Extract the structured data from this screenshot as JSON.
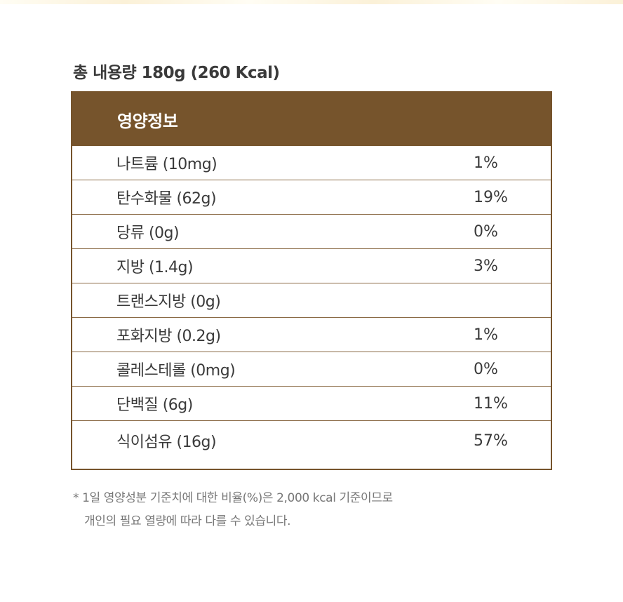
{
  "total": "총 내용량 180g (260 Kcal)",
  "panel": {
    "title": "영양정보",
    "rows": [
      {
        "name": "나트륨 (10mg)",
        "percent": "1%"
      },
      {
        "name": "탄수화물 (62g)",
        "percent": "19%"
      },
      {
        "name": "당류 (0g)",
        "percent": "0%"
      },
      {
        "name": "지방 (1.4g)",
        "percent": "3%"
      },
      {
        "name": "트랜스지방 (0g)",
        "percent": ""
      },
      {
        "name": "포화지방 (0.2g)",
        "percent": "1%"
      },
      {
        "name": "콜레스테롤 (0mg)",
        "percent": "0%"
      },
      {
        "name": "단백질 (6g)",
        "percent": "11%"
      },
      {
        "name": "식이섬유 (16g)",
        "percent": "57%"
      }
    ]
  },
  "note": {
    "line1": "* 1일 영양성분 기준치에 대한 비율(%)은 2,000 kcal 기준이므로",
    "line2": "개인의 필요 열량에 따라 다를 수 있습니다."
  },
  "colors": {
    "accent": "#76542c",
    "text": "#3a3a3a",
    "note": "#777777"
  }
}
